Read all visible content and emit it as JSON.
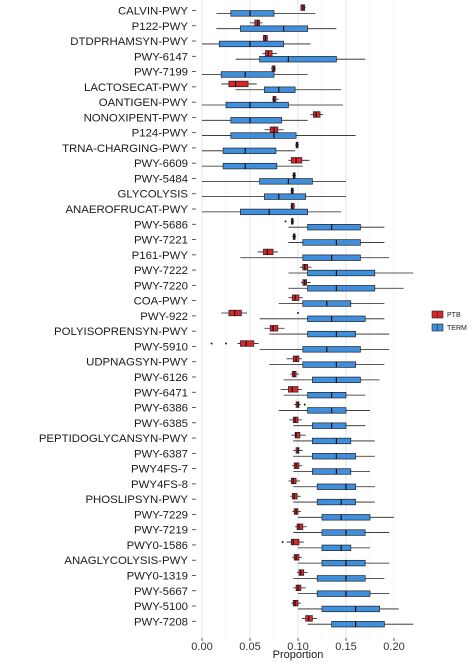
{
  "chart_data": {
    "type": "boxplot",
    "xlabel": "Proportion",
    "ylabel": "",
    "xlim": [
      0.0,
      0.21
    ],
    "xticks": [
      "0.00",
      "0.05",
      "0.10",
      "0.15",
      "0.20"
    ],
    "grid": true,
    "legend_position": "right",
    "series": [
      {
        "name": "PTB",
        "color": "#d7272b"
      },
      {
        "name": "TERM",
        "color": "#3f8fdc"
      }
    ],
    "categories": [
      "CALVIN-PWY",
      "P122-PWY",
      "DTDPRHAMSYN-PWY",
      "PWY-6147",
      "PWY-7199",
      "LACTOSECAT-PWY",
      "OANTIGEN-PWY",
      "NONOXIPENT-PWY",
      "P124-PWY",
      "TRNA-CHARGING-PWY",
      "PWY-6609",
      "PWY-5484",
      "GLYCOLYSIS",
      "ANAEROFRUCAT-PWY",
      "PWY-5686",
      "PWY-7221",
      "P161-PWY",
      "PWY-7222",
      "PWY-7220",
      "COA-PWY",
      "PWY-922",
      "POLYISOPRENSYN-PWY",
      "PWY-5910",
      "UDPNAGSYN-PWY",
      "PWY-6126",
      "PWY-6471",
      "PWY-6386",
      "PWY-6385",
      "PEPTIDOGLYCANSYN-PWY",
      "PWY-6387",
      "PWY4FS-7",
      "PWY4FS-8",
      "PHOSLIPSYN-PWY",
      "PWY-7229",
      "PWY-7219",
      "PWY0-1586",
      "ANAGLYCOLYSIS-PWY",
      "PWY0-1319",
      "PWY-5667",
      "PWY-5100",
      "PWY-7208"
    ],
    "ptb": [
      [
        0.103,
        0.103,
        0.105,
        0.107,
        0.108
      ],
      [
        0.05,
        0.055,
        0.058,
        0.06,
        0.063
      ],
      [
        0.063,
        0.064,
        0.066,
        0.068,
        0.069
      ],
      [
        0.063,
        0.066,
        0.069,
        0.073,
        0.078
      ],
      [
        0.072,
        0.073,
        0.075,
        0.076,
        0.077
      ],
      [
        0.02,
        0.028,
        0.035,
        0.048,
        0.057
      ],
      [
        0.073,
        0.074,
        0.075,
        0.077,
        0.08
      ],
      [
        0.113,
        0.116,
        0.119,
        0.123,
        0.126
      ],
      [
        0.065,
        0.071,
        0.075,
        0.079,
        0.085
      ],
      [
        0.097,
        0.098,
        0.099,
        0.1,
        0.101
      ],
      [
        0.09,
        0.093,
        0.098,
        0.104,
        0.112
      ],
      [
        0.094,
        0.095,
        0.096,
        0.097,
        0.098
      ],
      [
        0.092,
        0.093,
        0.094,
        0.095,
        0.096
      ],
      [
        0.092,
        0.093,
        0.094,
        0.096,
        0.097
      ],
      [
        0.093,
        0.093,
        0.094,
        0.095,
        0.096
      ],
      [
        0.094,
        0.095,
        0.096,
        0.097,
        0.098
      ],
      [
        0.058,
        0.064,
        0.068,
        0.074,
        0.079
      ],
      [
        0.102,
        0.105,
        0.107,
        0.11,
        0.114
      ],
      [
        0.103,
        0.105,
        0.107,
        0.109,
        0.113
      ],
      [
        0.09,
        0.094,
        0.097,
        0.101,
        0.105
      ],
      [
        0.02,
        0.028,
        0.034,
        0.041,
        0.047
      ],
      [
        0.065,
        0.071,
        0.074,
        0.079,
        0.086
      ],
      [
        0.037,
        0.04,
        0.046,
        0.054,
        0.059
      ],
      [
        0.088,
        0.095,
        0.098,
        0.101,
        0.104
      ],
      [
        0.092,
        0.094,
        0.096,
        0.098,
        0.101
      ],
      [
        0.082,
        0.09,
        0.094,
        0.1,
        0.104
      ],
      [
        0.096,
        0.098,
        0.1,
        0.101,
        0.103
      ],
      [
        0.091,
        0.095,
        0.097,
        0.1,
        0.104
      ],
      [
        0.093,
        0.097,
        0.098,
        0.102,
        0.108
      ],
      [
        0.095,
        0.098,
        0.1,
        0.101,
        0.105
      ],
      [
        0.094,
        0.096,
        0.098,
        0.101,
        0.104
      ],
      [
        0.09,
        0.093,
        0.095,
        0.098,
        0.102
      ],
      [
        0.092,
        0.094,
        0.096,
        0.099,
        0.103
      ],
      [
        0.094,
        0.096,
        0.098,
        0.1,
        0.103
      ],
      [
        0.097,
        0.099,
        0.101,
        0.105,
        0.109
      ],
      [
        0.088,
        0.093,
        0.095,
        0.101,
        0.106
      ],
      [
        0.094,
        0.096,
        0.098,
        0.101,
        0.104
      ],
      [
        0.099,
        0.101,
        0.103,
        0.106,
        0.11
      ],
      [
        0.095,
        0.098,
        0.1,
        0.103,
        0.108
      ],
      [
        0.093,
        0.095,
        0.097,
        0.1,
        0.103
      ],
      [
        0.104,
        0.108,
        0.111,
        0.115,
        0.12
      ]
    ],
    "term": [
      [
        0.015,
        0.03,
        0.05,
        0.075,
        0.118
      ],
      [
        0.015,
        0.04,
        0.085,
        0.11,
        0.14
      ],
      [
        0.0,
        0.018,
        0.05,
        0.085,
        0.113
      ],
      [
        0.035,
        0.06,
        0.09,
        0.14,
        0.17
      ],
      [
        0.0,
        0.02,
        0.045,
        0.075,
        0.11
      ],
      [
        0.035,
        0.065,
        0.08,
        0.097,
        0.145
      ],
      [
        0.0,
        0.025,
        0.05,
        0.09,
        0.147
      ],
      [
        0.0,
        0.03,
        0.05,
        0.083,
        0.11
      ],
      [
        0.0,
        0.03,
        0.075,
        0.098,
        0.16
      ],
      [
        0.0,
        0.022,
        0.045,
        0.077,
        0.097
      ],
      [
        0.0,
        0.022,
        0.045,
        0.078,
        0.105
      ],
      [
        0.0,
        0.06,
        0.09,
        0.115,
        0.15
      ],
      [
        0.0,
        0.065,
        0.08,
        0.108,
        0.15
      ],
      [
        0.0,
        0.04,
        0.07,
        0.11,
        0.145
      ],
      [
        0.09,
        0.11,
        0.135,
        0.165,
        0.19
      ],
      [
        0.09,
        0.105,
        0.14,
        0.165,
        0.19
      ],
      [
        0.04,
        0.105,
        0.135,
        0.165,
        0.195
      ],
      [
        0.09,
        0.11,
        0.14,
        0.18,
        0.22
      ],
      [
        0.09,
        0.11,
        0.14,
        0.18,
        0.21
      ],
      [
        0.08,
        0.105,
        0.13,
        0.155,
        0.19
      ],
      [
        0.06,
        0.11,
        0.135,
        0.17,
        0.19
      ],
      [
        0.07,
        0.11,
        0.14,
        0.16,
        0.195
      ],
      [
        0.06,
        0.105,
        0.13,
        0.165,
        0.195
      ],
      [
        0.07,
        0.105,
        0.14,
        0.16,
        0.19
      ],
      [
        0.085,
        0.115,
        0.14,
        0.165,
        0.185
      ],
      [
        0.085,
        0.11,
        0.135,
        0.15,
        0.17
      ],
      [
        0.08,
        0.11,
        0.135,
        0.15,
        0.175
      ],
      [
        0.095,
        0.115,
        0.135,
        0.15,
        0.17
      ],
      [
        0.095,
        0.115,
        0.14,
        0.155,
        0.18
      ],
      [
        0.095,
        0.115,
        0.14,
        0.16,
        0.18
      ],
      [
        0.095,
        0.115,
        0.14,
        0.155,
        0.175
      ],
      [
        0.095,
        0.12,
        0.15,
        0.16,
        0.18
      ],
      [
        0.095,
        0.12,
        0.145,
        0.16,
        0.18
      ],
      [
        0.1,
        0.125,
        0.145,
        0.175,
        0.2
      ],
      [
        0.095,
        0.125,
        0.15,
        0.17,
        0.195
      ],
      [
        0.1,
        0.125,
        0.145,
        0.155,
        0.175
      ],
      [
        0.1,
        0.125,
        0.15,
        0.17,
        0.195
      ],
      [
        0.095,
        0.12,
        0.15,
        0.17,
        0.19
      ],
      [
        0.1,
        0.12,
        0.15,
        0.175,
        0.195
      ],
      [
        0.1,
        0.125,
        0.16,
        0.185,
        0.205
      ],
      [
        0.11,
        0.135,
        0.16,
        0.19,
        0.22
      ]
    ],
    "ptb_outliers": [
      {
        "category": "PWY-5686",
        "value": 0.087
      },
      {
        "category": "PWY-922",
        "value": 0.1
      },
      {
        "category": "PWY-5910",
        "value": 0.01
      },
      {
        "category": "PWY-5910",
        "value": 0.025
      },
      {
        "category": "PWY-6386",
        "value": 0.107
      },
      {
        "category": "PWY0-1586",
        "value": 0.084
      }
    ]
  }
}
